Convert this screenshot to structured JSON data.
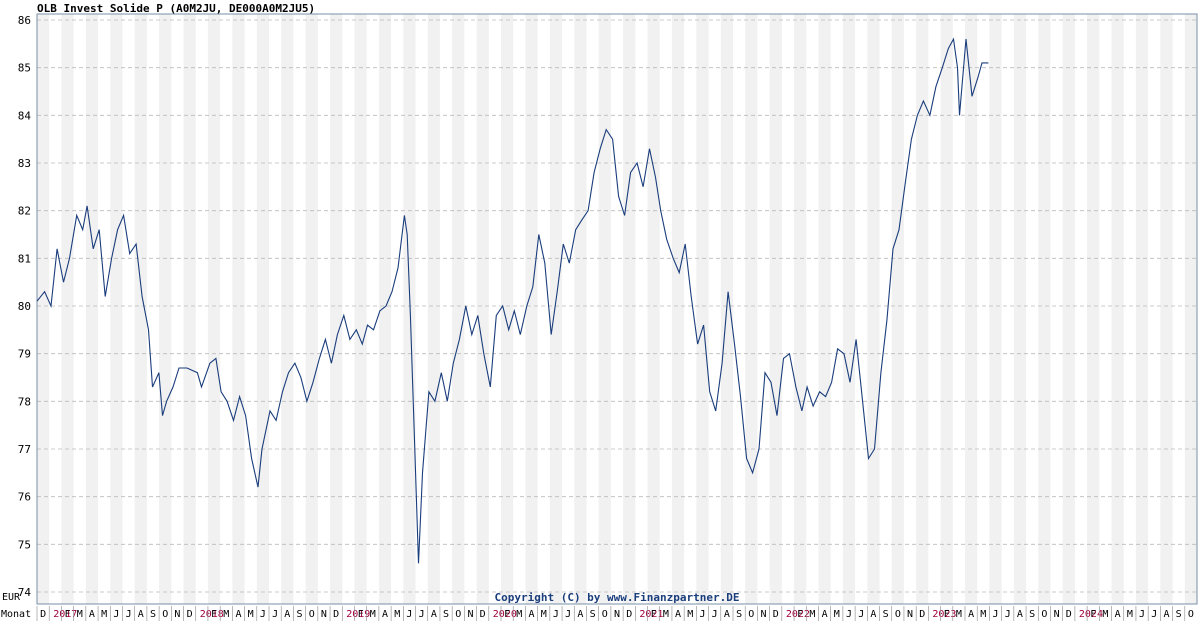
{
  "chart_data": {
    "type": "line",
    "title": "OLB Invest Solide P (A0M2JU, DE000A0M2JU5)",
    "ylabel": "EUR",
    "xlabel": "Monat",
    "copyright": "Copyright (C) by www.Finanzpartner.DE",
    "ylim": [
      74,
      86
    ],
    "y_ticks": [
      "74",
      "75",
      "76",
      "77",
      "78",
      "79",
      "80",
      "81",
      "82",
      "83",
      "84",
      "85",
      "86"
    ],
    "grid": true,
    "x_start": "2016-12",
    "x_end": "2024-10",
    "month_labels": [
      "D",
      "2017",
      "F",
      "M",
      "A",
      "M",
      "J",
      "J",
      "A",
      "S",
      "O",
      "N",
      "D",
      "2018",
      "F",
      "M",
      "A",
      "M",
      "J",
      "J",
      "A",
      "S",
      "O",
      "N",
      "D",
      "2019",
      "F",
      "M",
      "A",
      "M",
      "J",
      "J",
      "A",
      "S",
      "O",
      "N",
      "D",
      "2020",
      "F",
      "M",
      "A",
      "M",
      "J",
      "J",
      "A",
      "S",
      "O",
      "N",
      "D",
      "2021",
      "F",
      "M",
      "A",
      "M",
      "J",
      "J",
      "A",
      "S",
      "O",
      "N",
      "D",
      "2022",
      "F",
      "M",
      "A",
      "M",
      "J",
      "J",
      "A",
      "S",
      "O",
      "N",
      "D",
      "2023",
      "F",
      "M",
      "A",
      "M",
      "J",
      "J",
      "A",
      "S",
      "O",
      "N",
      "D",
      "2024",
      "F",
      "M",
      "A",
      "M",
      "J",
      "J",
      "A",
      "S",
      "O"
    ],
    "year_labels": [
      "2017",
      "2018",
      "2019",
      "2020",
      "2021",
      "2022",
      "2023",
      "2024"
    ],
    "colors": {
      "line": "#1a3d7c",
      "stripe": "#e6e6e6",
      "grid": "#bbbbbb",
      "year": "#a0003c",
      "frame": "#7a8fa8"
    },
    "series": [
      {
        "values": [
          [
            "2016-12-01",
            80.1
          ],
          [
            "2016-12-20",
            80.3
          ],
          [
            "2017-01-05",
            80.0
          ],
          [
            "2017-01-20",
            81.2
          ],
          [
            "2017-02-05",
            80.5
          ],
          [
            "2017-02-20",
            81.0
          ],
          [
            "2017-03-10",
            81.9
          ],
          [
            "2017-03-25",
            81.6
          ],
          [
            "2017-04-05",
            82.1
          ],
          [
            "2017-04-20",
            81.2
          ],
          [
            "2017-05-05",
            81.6
          ],
          [
            "2017-05-20",
            80.2
          ],
          [
            "2017-06-05",
            81.0
          ],
          [
            "2017-06-20",
            81.6
          ],
          [
            "2017-07-05",
            81.9
          ],
          [
            "2017-07-20",
            81.1
          ],
          [
            "2017-08-05",
            81.3
          ],
          [
            "2017-08-20",
            80.2
          ],
          [
            "2017-09-05",
            79.5
          ],
          [
            "2017-09-15",
            78.3
          ],
          [
            "2017-10-01",
            78.6
          ],
          [
            "2017-10-10",
            77.7
          ],
          [
            "2017-10-20",
            78.0
          ],
          [
            "2017-11-05",
            78.3
          ],
          [
            "2017-11-20",
            78.7
          ],
          [
            "2017-12-10",
            78.7
          ],
          [
            "2018-01-05",
            78.6
          ],
          [
            "2018-01-15",
            78.3
          ],
          [
            "2018-02-05",
            78.8
          ],
          [
            "2018-02-20",
            78.9
          ],
          [
            "2018-03-05",
            78.2
          ],
          [
            "2018-03-20",
            78.0
          ],
          [
            "2018-04-05",
            77.6
          ],
          [
            "2018-04-20",
            78.1
          ],
          [
            "2018-05-05",
            77.7
          ],
          [
            "2018-05-20",
            76.8
          ],
          [
            "2018-06-05",
            76.2
          ],
          [
            "2018-06-15",
            77.0
          ],
          [
            "2018-07-05",
            77.8
          ],
          [
            "2018-07-20",
            77.6
          ],
          [
            "2018-08-05",
            78.2
          ],
          [
            "2018-08-20",
            78.6
          ],
          [
            "2018-09-05",
            78.8
          ],
          [
            "2018-09-20",
            78.5
          ],
          [
            "2018-10-05",
            78.0
          ],
          [
            "2018-10-20",
            78.4
          ],
          [
            "2018-11-05",
            78.9
          ],
          [
            "2018-11-20",
            79.3
          ],
          [
            "2018-12-05",
            78.8
          ],
          [
            "2018-12-20",
            79.4
          ],
          [
            "2019-01-05",
            79.8
          ],
          [
            "2019-01-20",
            79.3
          ],
          [
            "2019-02-05",
            79.5
          ],
          [
            "2019-02-20",
            79.2
          ],
          [
            "2019-03-05",
            79.6
          ],
          [
            "2019-03-20",
            79.5
          ],
          [
            "2019-04-05",
            79.9
          ],
          [
            "2019-04-20",
            80.0
          ],
          [
            "2019-05-05",
            80.3
          ],
          [
            "2019-05-20",
            80.8
          ],
          [
            "2019-06-05",
            81.9
          ],
          [
            "2019-06-12",
            81.5
          ],
          [
            "2019-06-20",
            79.8
          ],
          [
            "2019-07-01",
            77.0
          ],
          [
            "2019-07-10",
            74.6
          ],
          [
            "2019-07-20",
            76.5
          ],
          [
            "2019-08-05",
            78.2
          ],
          [
            "2019-08-20",
            78.0
          ],
          [
            "2019-09-05",
            78.6
          ],
          [
            "2019-09-20",
            78.0
          ],
          [
            "2019-10-05",
            78.8
          ],
          [
            "2019-10-20",
            79.3
          ],
          [
            "2019-11-05",
            80.0
          ],
          [
            "2019-11-20",
            79.4
          ],
          [
            "2019-12-05",
            79.8
          ],
          [
            "2019-12-20",
            79.0
          ],
          [
            "2020-01-05",
            78.3
          ],
          [
            "2020-01-20",
            79.8
          ],
          [
            "2020-02-05",
            80.0
          ],
          [
            "2020-02-20",
            79.5
          ],
          [
            "2020-03-05",
            79.9
          ],
          [
            "2020-03-20",
            79.4
          ],
          [
            "2020-04-05",
            80.0
          ],
          [
            "2020-04-20",
            80.4
          ],
          [
            "2020-05-05",
            81.5
          ],
          [
            "2020-05-20",
            80.9
          ],
          [
            "2020-06-05",
            79.4
          ],
          [
            "2020-06-20",
            80.3
          ],
          [
            "2020-07-05",
            81.3
          ],
          [
            "2020-07-20",
            80.9
          ],
          [
            "2020-08-05",
            81.6
          ],
          [
            "2020-08-20",
            81.8
          ],
          [
            "2020-09-05",
            82.0
          ],
          [
            "2020-09-20",
            82.8
          ],
          [
            "2020-10-05",
            83.3
          ],
          [
            "2020-10-20",
            83.7
          ],
          [
            "2020-11-05",
            83.5
          ],
          [
            "2020-11-20",
            82.3
          ],
          [
            "2020-12-05",
            81.9
          ],
          [
            "2020-12-20",
            82.8
          ],
          [
            "2021-01-05",
            83.0
          ],
          [
            "2021-01-20",
            82.5
          ],
          [
            "2021-02-05",
            83.3
          ],
          [
            "2021-02-20",
            82.7
          ],
          [
            "2021-03-05",
            82.0
          ],
          [
            "2021-03-20",
            81.4
          ],
          [
            "2021-04-05",
            81.0
          ],
          [
            "2021-04-20",
            80.7
          ],
          [
            "2021-05-05",
            81.3
          ],
          [
            "2021-05-20",
            80.2
          ],
          [
            "2021-06-05",
            79.2
          ],
          [
            "2021-06-20",
            79.6
          ],
          [
            "2021-07-05",
            78.2
          ],
          [
            "2021-07-20",
            77.8
          ],
          [
            "2021-08-05",
            78.8
          ],
          [
            "2021-08-20",
            80.3
          ],
          [
            "2021-09-05",
            79.2
          ],
          [
            "2021-09-20",
            78.1
          ],
          [
            "2021-10-05",
            76.8
          ],
          [
            "2021-10-20",
            76.5
          ],
          [
            "2021-11-05",
            77.0
          ],
          [
            "2021-11-20",
            78.6
          ],
          [
            "2021-12-05",
            78.4
          ],
          [
            "2021-12-20",
            77.7
          ],
          [
            "2022-01-05",
            78.9
          ],
          [
            "2022-01-20",
            79.0
          ],
          [
            "2022-02-05",
            78.3
          ],
          [
            "2022-02-20",
            77.8
          ],
          [
            "2022-03-05",
            78.3
          ],
          [
            "2022-03-20",
            77.9
          ],
          [
            "2022-04-05",
            78.2
          ],
          [
            "2022-04-20",
            78.1
          ],
          [
            "2022-05-05",
            78.4
          ],
          [
            "2022-05-20",
            79.1
          ],
          [
            "2022-06-05",
            79.0
          ],
          [
            "2022-06-20",
            78.4
          ],
          [
            "2022-07-05",
            79.3
          ],
          [
            "2022-07-20",
            78.1
          ],
          [
            "2022-08-05",
            76.8
          ],
          [
            "2022-08-20",
            77.0
          ],
          [
            "2022-09-05",
            78.6
          ],
          [
            "2022-09-20",
            79.7
          ],
          [
            "2022-10-05",
            81.2
          ],
          [
            "2022-10-20",
            81.6
          ],
          [
            "2022-11-05",
            82.6
          ],
          [
            "2022-11-20",
            83.5
          ],
          [
            "2022-12-05",
            84.0
          ],
          [
            "2022-12-20",
            84.3
          ],
          [
            "2023-01-05",
            84.0
          ],
          [
            "2023-01-20",
            84.6
          ],
          [
            "2023-02-05",
            85.0
          ],
          [
            "2023-02-20",
            85.4
          ],
          [
            "2023-03-05",
            85.6
          ],
          [
            "2023-03-15",
            85.0
          ],
          [
            "2023-03-20",
            84.0
          ],
          [
            "2023-04-05",
            85.6
          ],
          [
            "2023-04-20",
            84.4
          ],
          [
            "2023-05-05",
            84.8
          ],
          [
            "2023-05-15",
            85.1
          ],
          [
            "2023-05-31",
            85.1
          ]
        ]
      }
    ]
  }
}
